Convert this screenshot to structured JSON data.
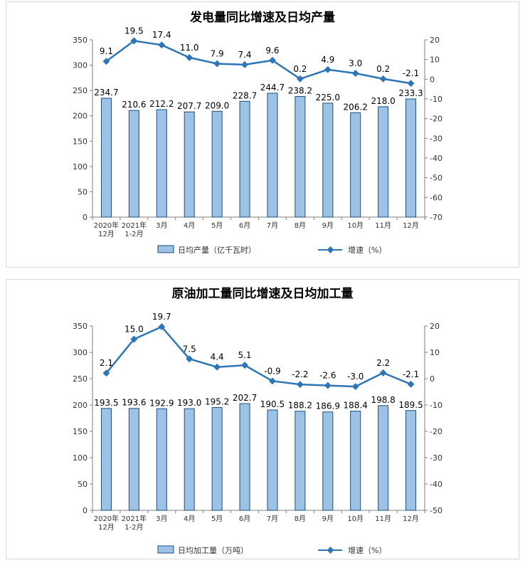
{
  "chart_data": [
    {
      "type": "bar+line",
      "title": "发电量同比增速及日均产量",
      "categories": [
        "2020年\n12月",
        "2021年\n1-2月",
        "3月",
        "4月",
        "5月",
        "6月",
        "7月",
        "8月",
        "9月",
        "10月",
        "11月",
        "12月"
      ],
      "series": [
        {
          "name": "日均产量（亿千瓦时）",
          "type": "bar",
          "axis": "left",
          "values": [
            234.7,
            210.6,
            212.2,
            207.7,
            209.0,
            228.7,
            244.7,
            238.2,
            225.0,
            206.2,
            218.0,
            233.3
          ],
          "labels": [
            "234.7",
            "210.6",
            "212.2",
            "207.7",
            "209.0",
            "228.7",
            "244.7",
            "238.2",
            "225.0",
            "206.2",
            "218.0",
            "233.3"
          ]
        },
        {
          "name": "增速（%）",
          "type": "line",
          "axis": "right",
          "values": [
            9.1,
            19.5,
            17.4,
            11.0,
            7.9,
            7.4,
            9.6,
            0.2,
            4.9,
            3.0,
            0.2,
            -2.1
          ],
          "labels": [
            "9.1",
            "19.5",
            "17.4",
            "11.0",
            "7.9",
            "7.4",
            "9.6",
            "0.2",
            "4.9",
            "3.0",
            "0.2",
            "-2.1"
          ]
        }
      ],
      "ylim_left": [
        0,
        350
      ],
      "yticks_left": [
        "0",
        "50",
        "100",
        "150",
        "200",
        "250",
        "300",
        "350"
      ],
      "ylim_right": [
        -70,
        20
      ],
      "yticks_right": [
        "-70",
        "-60",
        "-50",
        "-40",
        "-30",
        "-20",
        "-10",
        "0",
        "10",
        "20"
      ],
      "legend_position": "bottom",
      "grid": false
    },
    {
      "type": "bar+line",
      "title": "原油加工量同比增速及日均加工量",
      "categories": [
        "2020年\n12月",
        "2021年\n1-2月",
        "3月",
        "4月",
        "5月",
        "6月",
        "7月",
        "8月",
        "9月",
        "10月",
        "11月",
        "12月"
      ],
      "series": [
        {
          "name": "日均加工量（万吨）",
          "type": "bar",
          "axis": "left",
          "values": [
            193.5,
            193.6,
            192.9,
            193.0,
            195.2,
            202.7,
            190.5,
            188.2,
            186.9,
            188.4,
            198.8,
            189.5
          ],
          "labels": [
            "193.5",
            "193.6",
            "192.9",
            "193.0",
            "195.2",
            "202.7",
            "190.5",
            "188.2",
            "186.9",
            "188.4",
            "198.8",
            "189.5"
          ]
        },
        {
          "name": "增速（%）",
          "type": "line",
          "axis": "right",
          "values": [
            2.1,
            15.0,
            19.7,
            7.5,
            4.4,
            5.1,
            -0.9,
            -2.2,
            -2.6,
            -3.0,
            2.2,
            -2.1
          ],
          "labels": [
            "2.1",
            "15.0",
            "19.7",
            "7.5",
            "4.4",
            "5.1",
            "-0.9",
            "-2.2",
            "-2.6",
            "-3.0",
            "2.2",
            "-2.1"
          ]
        }
      ],
      "ylim_left": [
        0,
        350
      ],
      "yticks_left": [
        "0",
        "50",
        "100",
        "150",
        "200",
        "250",
        "300",
        "350"
      ],
      "ylim_right": [
        -50,
        20
      ],
      "yticks_right": [
        "-50",
        "-40",
        "-30",
        "-20",
        "-10",
        "0",
        "10",
        "20"
      ],
      "legend_position": "bottom",
      "grid": false
    }
  ],
  "colors": {
    "bar_fill": "#9cc3e5",
    "bar_stroke": "#1f4e79",
    "line": "#2e75b6",
    "axis": "#7f7f7f",
    "text": "#000000"
  }
}
